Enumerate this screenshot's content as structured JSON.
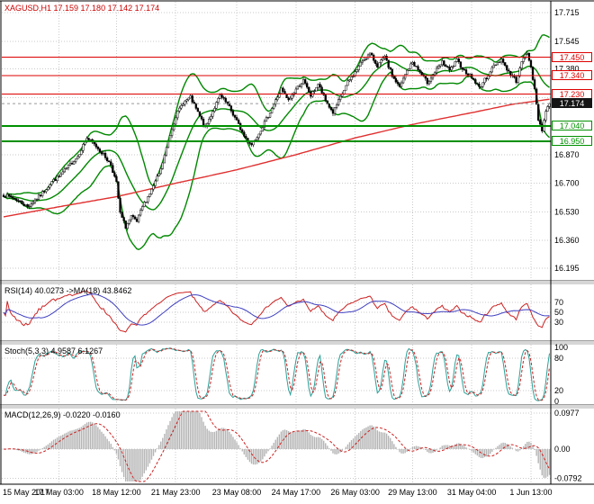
{
  "chart_data": {
    "type": "candlestick",
    "header": "XAGUSD,H1 17.159 17.180 17.142 17.174",
    "symbol": "XAGUSD",
    "timeframe": "H1",
    "ohlc_current": {
      "open": 17.159,
      "high": 17.18,
      "low": 17.142,
      "close": 17.174
    },
    "current_price": 17.174,
    "n_bars": 296,
    "ylim": [
      16.13,
      17.78
    ],
    "y_ticks": [
      17.715,
      17.545,
      17.38,
      17.21,
      17.04,
      16.87,
      16.7,
      16.53,
      16.36,
      16.195
    ],
    "y_ticks_text": [
      17.715,
      17.545,
      17.38,
      16.87,
      16.7,
      16.53,
      16.36,
      16.195
    ],
    "x_labels": [
      "15 May 2017",
      "17 May 03:00",
      "18 May 12:00",
      "21 May 23:00",
      "23 May 08:00",
      "24 May 17:00",
      "26 May 03:00",
      "29 May 13:00",
      "31 May 04:00",
      "1 Jun 13:00"
    ],
    "x_label_bars": [
      0,
      30,
      61,
      93,
      126,
      158,
      190,
      221,
      253,
      285
    ],
    "levels": [
      {
        "value": 17.45,
        "color": "#dd0000",
        "width": 1
      },
      {
        "value": 17.34,
        "color": "#dd0000",
        "width": 1
      },
      {
        "value": 17.23,
        "color": "#dd0000",
        "width": 1
      },
      {
        "value": 17.04,
        "color": "#009000",
        "width": 2
      },
      {
        "value": 16.95,
        "color": "#009000",
        "width": 2
      }
    ],
    "price_anchors": [
      [
        0,
        16.63
      ],
      [
        6,
        16.61
      ],
      [
        13,
        16.56
      ],
      [
        20,
        16.63
      ],
      [
        26,
        16.71
      ],
      [
        30,
        16.74
      ],
      [
        35,
        16.8
      ],
      [
        40,
        16.86
      ],
      [
        45,
        16.97
      ],
      [
        50,
        16.92
      ],
      [
        54,
        16.87
      ],
      [
        58,
        16.81
      ],
      [
        61,
        16.7
      ],
      [
        63,
        16.52
      ],
      [
        66,
        16.44
      ],
      [
        69,
        16.5
      ],
      [
        72,
        16.47
      ],
      [
        75,
        16.56
      ],
      [
        80,
        16.66
      ],
      [
        85,
        16.78
      ],
      [
        89,
        16.95
      ],
      [
        93,
        17.1
      ],
      [
        97,
        17.18
      ],
      [
        101,
        17.21
      ],
      [
        105,
        17.12
      ],
      [
        109,
        17.03
      ],
      [
        113,
        17.13
      ],
      [
        117,
        17.22
      ],
      [
        121,
        17.17
      ],
      [
        126,
        17.07
      ],
      [
        130,
        16.98
      ],
      [
        134,
        16.93
      ],
      [
        138,
        17.0
      ],
      [
        142,
        17.08
      ],
      [
        146,
        17.17
      ],
      [
        150,
        17.26
      ],
      [
        154,
        17.19
      ],
      [
        158,
        17.26
      ],
      [
        162,
        17.31
      ],
      [
        166,
        17.22
      ],
      [
        170,
        17.29
      ],
      [
        174,
        17.19
      ],
      [
        178,
        17.12
      ],
      [
        182,
        17.21
      ],
      [
        186,
        17.3
      ],
      [
        190,
        17.36
      ],
      [
        194,
        17.43
      ],
      [
        198,
        17.47
      ],
      [
        202,
        17.4
      ],
      [
        206,
        17.45
      ],
      [
        210,
        17.34
      ],
      [
        214,
        17.27
      ],
      [
        218,
        17.37
      ],
      [
        221,
        17.42
      ],
      [
        225,
        17.36
      ],
      [
        229,
        17.3
      ],
      [
        233,
        17.36
      ],
      [
        237,
        17.42
      ],
      [
        241,
        17.37
      ],
      [
        245,
        17.43
      ],
      [
        249,
        17.37
      ],
      [
        253,
        17.33
      ],
      [
        257,
        17.27
      ],
      [
        261,
        17.33
      ],
      [
        265,
        17.4
      ],
      [
        269,
        17.44
      ],
      [
        273,
        17.36
      ],
      [
        277,
        17.31
      ],
      [
        281,
        17.45
      ],
      [
        283,
        17.47
      ],
      [
        285,
        17.4
      ],
      [
        287,
        17.25
      ],
      [
        289,
        17.08
      ],
      [
        291,
        17.02
      ],
      [
        293,
        17.13
      ],
      [
        295,
        17.17
      ]
    ],
    "red_ma_anchors": [
      [
        0,
        16.5
      ],
      [
        30,
        16.56
      ],
      [
        61,
        16.62
      ],
      [
        93,
        16.7
      ],
      [
        126,
        16.78
      ],
      [
        158,
        16.87
      ],
      [
        190,
        16.97
      ],
      [
        221,
        17.05
      ],
      [
        253,
        17.12
      ],
      [
        275,
        17.17
      ],
      [
        295,
        17.2
      ]
    ],
    "panels": {
      "rsi": {
        "label": "RSI(14) 40.0273 ->MA(18) 43.8462",
        "period": 14,
        "ma_period": 18,
        "current": 40.0273,
        "ma_current": 43.8462,
        "ticks": [
          70,
          50,
          30
        ],
        "range": [
          0,
          100
        ]
      },
      "stoch": {
        "label": "Stoch(5,3,3) 4.9587 6.1267",
        "current_k": 4.9587,
        "current_d": 6.1267,
        "ticks": [
          100,
          80,
          20,
          0
        ],
        "level_lines": [
          80,
          20
        ],
        "range": [
          0,
          100
        ]
      },
      "macd": {
        "label": "MACD(12,26,9) -0.0220 -0.0160",
        "current": -0.022,
        "signal_current": -0.016,
        "ticks": [
          {
            "v": 0.0977,
            "t": "0.0977"
          },
          {
            "v": 0,
            "t": "0.00"
          },
          {
            "v": -0.0792,
            "t": "-0.0792"
          }
        ],
        "range": [
          -0.0879,
          0.1027
        ]
      }
    },
    "style": {
      "header_color": "#cc0000",
      "grid": "#cacaca",
      "frame": "#000000",
      "candle_up_fill": "#ffffff",
      "candle_down_fill": "#000000",
      "candle_stroke": "#000000",
      "bollinger": "#008800",
      "ma_red": "#e03030",
      "rsi_line": "#cc2222",
      "rsi_ma_line": "#4040c0",
      "stoch_main": "#2aa198",
      "stoch_signal": "#cc2222",
      "macd_hist": "#b4b4b4",
      "macd_signal": "#cc2222",
      "divider_fill": "#d6d6d6",
      "current_price_line": "#999999"
    }
  }
}
